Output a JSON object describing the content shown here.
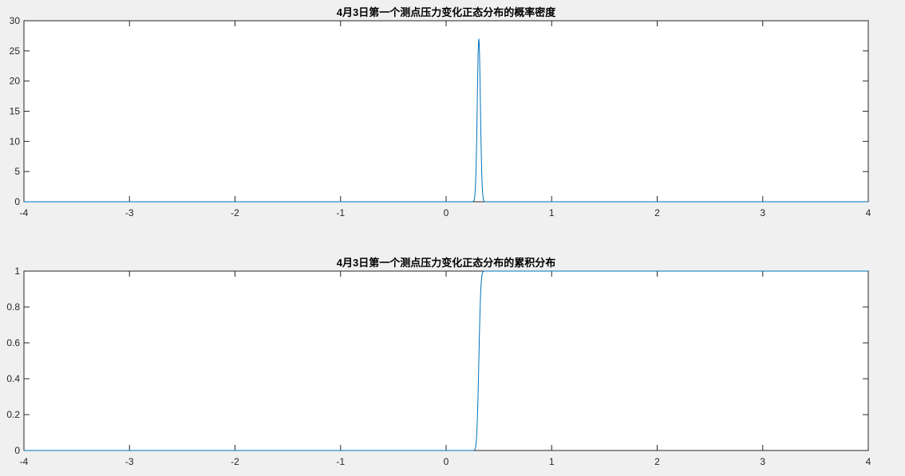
{
  "colors": {
    "background": "#f0f0f0",
    "axes_background": "#ffffff",
    "axis": "#262626",
    "line": "#0072bd"
  },
  "chart_data": [
    {
      "type": "line",
      "title": "4月3日第一个测点压力变化正态分布的概率密度",
      "xlabel": "",
      "ylabel": "",
      "xlim": [
        -4,
        4
      ],
      "ylim": [
        0,
        30
      ],
      "xticks": [
        -4,
        -3,
        -2,
        -1,
        0,
        1,
        2,
        3,
        4
      ],
      "yticks": [
        0,
        5,
        10,
        15,
        20,
        25,
        30
      ],
      "grid": false,
      "legend": "none",
      "series": [
        {
          "distribution": "normal-pdf",
          "mu": 0.31,
          "sigma": 0.0148,
          "peak": 27
        }
      ]
    },
    {
      "type": "line",
      "title": "4月3日第一个测点压力变化正态分布的累积分布",
      "xlabel": "",
      "ylabel": "",
      "xlim": [
        -4,
        4
      ],
      "ylim": [
        0,
        1
      ],
      "xticks": [
        -4,
        -3,
        -2,
        -1,
        0,
        1,
        2,
        3,
        4
      ],
      "yticks": [
        0,
        0.2,
        0.4,
        0.6,
        0.8,
        1
      ],
      "grid": false,
      "legend": "none",
      "series": [
        {
          "distribution": "normal-cdf",
          "mu": 0.31,
          "sigma": 0.0148
        }
      ]
    }
  ]
}
